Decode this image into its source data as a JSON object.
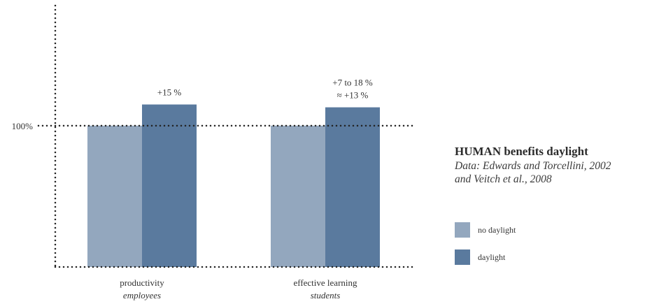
{
  "chart_data": {
    "type": "bar",
    "categories": [
      "productivity",
      "effective learning"
    ],
    "category_sublabels": [
      "employees",
      "students"
    ],
    "series": [
      {
        "name": "no daylight",
        "values": [
          100,
          100
        ]
      },
      {
        "name": "daylight",
        "values": [
          115,
          113
        ]
      }
    ],
    "bar_labels": [
      [
        "+15 %"
      ],
      [
        "+7 to 18 %",
        "≈ +13 %"
      ]
    ],
    "reference_line": {
      "value": 100,
      "label": "100%"
    },
    "ylim": [
      0,
      185
    ],
    "colors": {
      "no daylight": "#93a7be",
      "daylight": "#5a7a9e"
    },
    "grid": false,
    "legend_position": "right"
  },
  "info": {
    "title": "HUMAN benefits daylight",
    "subtitle_line1": "Data: Edwards and Torcellini, 2002",
    "subtitle_line2": "and Veitch et al., 2008"
  }
}
